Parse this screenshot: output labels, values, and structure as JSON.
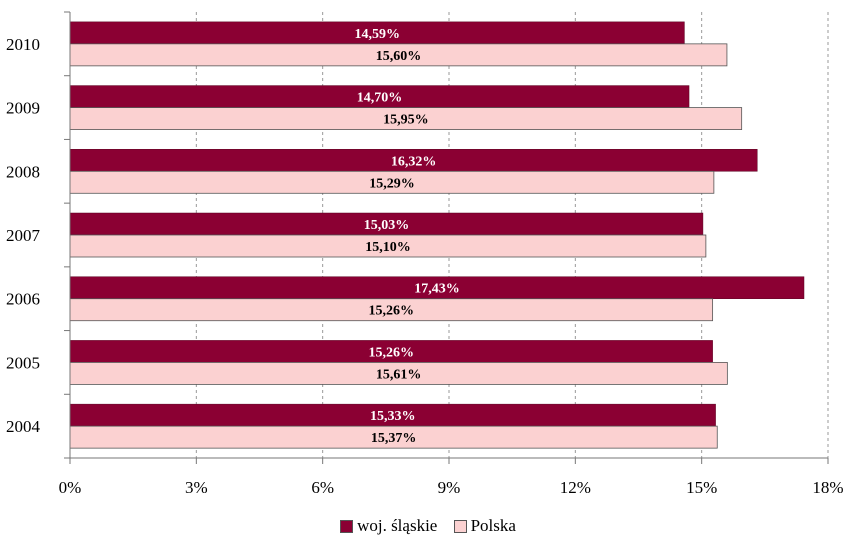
{
  "chart_data": {
    "type": "bar",
    "orientation": "horizontal",
    "categories": [
      "2010",
      "2009",
      "2008",
      "2007",
      "2006",
      "2005",
      "2004"
    ],
    "series": [
      {
        "name": "woj. śląskie",
        "values": [
          14.59,
          14.7,
          16.32,
          15.03,
          17.43,
          15.26,
          15.33
        ],
        "labels": [
          "14,59%",
          "14,70%",
          "16,32%",
          "15,03%",
          "17,43%",
          "15,26%",
          "15,33%"
        ],
        "color": "#8b0033",
        "label_color": "#ffffff"
      },
      {
        "name": "Polska",
        "values": [
          15.6,
          15.95,
          15.29,
          15.1,
          15.26,
          15.61,
          15.37
        ],
        "labels": [
          "15,60%",
          "15,95%",
          "15,29%",
          "15,10%",
          "15,26%",
          "15,61%",
          "15,37%"
        ],
        "color": "#fbd1d1",
        "label_color": "#000000"
      }
    ],
    "xlim": [
      0,
      18
    ],
    "x_ticks": [
      "0%",
      "3%",
      "6%",
      "9%",
      "12%",
      "15%",
      "18%"
    ],
    "grid": "vertical dashed",
    "legend_position": "bottom"
  }
}
